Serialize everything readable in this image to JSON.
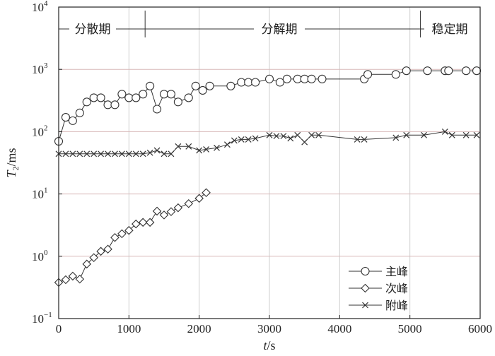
{
  "chart_data": {
    "type": "scatter",
    "xlabel": "t/s",
    "ylabel": "T2/ms",
    "xlim": [
      0,
      6000
    ],
    "ylim": [
      0.1,
      10000
    ],
    "yscale": "log",
    "grid": true,
    "legend_position": "bottom-right",
    "x_ticks": [
      "0",
      "1000",
      "2000",
      "3000",
      "4000",
      "5000",
      "6000"
    ],
    "y_ticks": [
      {
        "base": "10",
        "exp": "−1"
      },
      {
        "base": "10",
        "exp": "0"
      },
      {
        "base": "10",
        "exp": "1"
      },
      {
        "base": "10",
        "exp": "2"
      },
      {
        "base": "10",
        "exp": "3"
      },
      {
        "base": "10",
        "exp": "4"
      }
    ],
    "phases": [
      {
        "label": "分散期"
      },
      {
        "label": "分解期"
      },
      {
        "label": "稳定期"
      }
    ],
    "phase_boundaries": [
      1230,
      5150
    ],
    "series": [
      {
        "name": "主峰",
        "marker": "circle",
        "points": [
          [
            0,
            70
          ],
          [
            100,
            170
          ],
          [
            200,
            150
          ],
          [
            300,
            200
          ],
          [
            400,
            300
          ],
          [
            500,
            350
          ],
          [
            600,
            350
          ],
          [
            700,
            270
          ],
          [
            800,
            270
          ],
          [
            900,
            400
          ],
          [
            1000,
            350
          ],
          [
            1100,
            350
          ],
          [
            1200,
            400
          ],
          [
            1300,
            540
          ],
          [
            1400,
            230
          ],
          [
            1500,
            400
          ],
          [
            1600,
            400
          ],
          [
            1700,
            300
          ],
          [
            1850,
            350
          ],
          [
            1950,
            540
          ],
          [
            2050,
            460
          ],
          [
            2150,
            540
          ],
          [
            2450,
            540
          ],
          [
            2600,
            620
          ],
          [
            2700,
            620
          ],
          [
            2800,
            620
          ],
          [
            3000,
            700
          ],
          [
            3150,
            620
          ],
          [
            3250,
            700
          ],
          [
            3400,
            700
          ],
          [
            3500,
            700
          ],
          [
            3600,
            700
          ],
          [
            3750,
            700
          ],
          [
            4350,
            700
          ],
          [
            4400,
            830
          ],
          [
            4800,
            830
          ],
          [
            4950,
            950
          ],
          [
            5250,
            950
          ],
          [
            5500,
            950
          ],
          [
            5550,
            950
          ],
          [
            5800,
            950
          ],
          [
            5950,
            950
          ]
        ]
      },
      {
        "name": "次峰",
        "marker": "diamond",
        "points": [
          [
            0,
            0.38
          ],
          [
            100,
            0.42
          ],
          [
            200,
            0.48
          ],
          [
            300,
            0.43
          ],
          [
            400,
            0.75
          ],
          [
            500,
            0.95
          ],
          [
            600,
            1.2
          ],
          [
            700,
            1.3
          ],
          [
            800,
            2.0
          ],
          [
            900,
            2.3
          ],
          [
            1000,
            2.6
          ],
          [
            1100,
            3.3
          ],
          [
            1200,
            3.5
          ],
          [
            1300,
            3.5
          ],
          [
            1400,
            5.3
          ],
          [
            1500,
            4.6
          ],
          [
            1600,
            5.2
          ],
          [
            1700,
            6.0
          ],
          [
            1850,
            7.0
          ],
          [
            2000,
            8.5
          ],
          [
            2100,
            10.5
          ]
        ]
      },
      {
        "name": "附峰",
        "marker": "x",
        "points": [
          [
            0,
            44
          ],
          [
            100,
            44
          ],
          [
            200,
            44
          ],
          [
            300,
            44
          ],
          [
            400,
            44
          ],
          [
            500,
            44
          ],
          [
            600,
            44
          ],
          [
            700,
            44
          ],
          [
            800,
            44
          ],
          [
            900,
            44
          ],
          [
            1000,
            44
          ],
          [
            1100,
            44
          ],
          [
            1200,
            44
          ],
          [
            1300,
            46
          ],
          [
            1400,
            50
          ],
          [
            1500,
            44
          ],
          [
            1600,
            44
          ],
          [
            1700,
            58
          ],
          [
            1850,
            58
          ],
          [
            2000,
            50
          ],
          [
            2100,
            52
          ],
          [
            2250,
            55
          ],
          [
            2400,
            62
          ],
          [
            2500,
            72
          ],
          [
            2600,
            75
          ],
          [
            2700,
            75
          ],
          [
            2800,
            78
          ],
          [
            3000,
            88
          ],
          [
            3100,
            85
          ],
          [
            3200,
            85
          ],
          [
            3300,
            78
          ],
          [
            3400,
            88
          ],
          [
            3500,
            68
          ],
          [
            3600,
            88
          ],
          [
            3700,
            88
          ],
          [
            4250,
            75
          ],
          [
            4350,
            75
          ],
          [
            4800,
            80
          ],
          [
            4950,
            88
          ],
          [
            5200,
            88
          ],
          [
            5500,
            100
          ],
          [
            5600,
            88
          ],
          [
            5800,
            88
          ],
          [
            5950,
            88
          ]
        ]
      }
    ]
  }
}
